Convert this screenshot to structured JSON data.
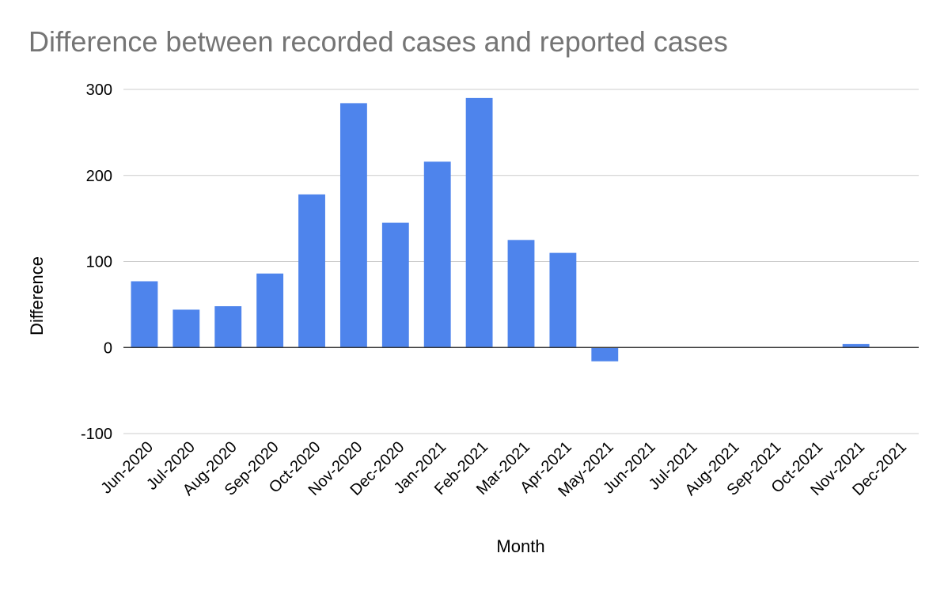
{
  "chart_data": {
    "type": "bar",
    "title": "Difference between recorded cases and reported cases",
    "xlabel": "Month",
    "ylabel": "Difference",
    "ylim": [
      -100,
      300
    ],
    "yticks": [
      300,
      200,
      100,
      0,
      -100
    ],
    "grid": true,
    "legend": "none",
    "categories": [
      "Jun-2020",
      "Jul-2020",
      "Aug-2020",
      "Sep-2020",
      "Oct-2020",
      "Nov-2020",
      "Dec-2020",
      "Jan-2021",
      "Feb-2021",
      "Mar-2021",
      "Apr-2021",
      "May-2021",
      "Jun-2021",
      "Jul-2021",
      "Aug-2021",
      "Sep-2021",
      "Oct-2021",
      "Nov-2021",
      "Dec-2021"
    ],
    "series": [
      {
        "name": "Difference",
        "color": "#4e84ec",
        "values": [
          77,
          44,
          48,
          86,
          178,
          284,
          145,
          216,
          290,
          125,
          110,
          -16,
          0,
          0,
          0,
          0,
          0,
          4,
          0
        ]
      }
    ]
  }
}
